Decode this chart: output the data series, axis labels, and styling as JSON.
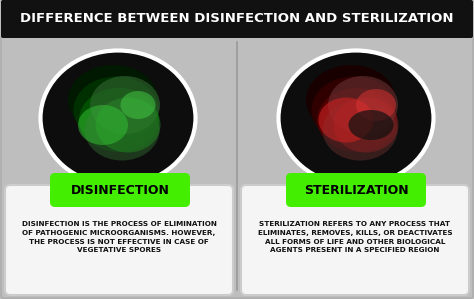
{
  "title": "DIFFERENCE BETWEEN DISINFECTION AND STERILIZATION",
  "title_fontsize": 9.5,
  "title_color": "#ffffff",
  "title_bg_color": "#111111",
  "background_color": "#bebebe",
  "left_label": "DISINFECTION",
  "right_label": "STERILIZATION",
  "label_bg_color": "#44ee00",
  "label_text_color": "#000000",
  "label_fontsize": 9,
  "left_text": "DISINFECTION IS THE PROCESS OF ELIMINATION\nOF PATHOGENIC MICROORGANISMS. HOWEVER,\nTHE PROCESS IS NOT EFFECTIVE IN CASE OF\nVEGETATIVE SPORES",
  "right_text": "STERILIZATION REFERS TO ANY PROCESS THAT\nELIMINATES, REMOVES, KILLS, OR DEACTIVATES\nALL FORMS OF LIFE AND OTHER BIOLOGICAL\nAGENTS PRESENT IN A SPECIFIED REGION",
  "text_fontsize": 5.2,
  "text_color": "#111111",
  "card_bg_color": "#f5f5f5",
  "divider_color": "#999999",
  "oval_left_bg": "#1a1a1a",
  "oval_right_bg": "#1a1a1a",
  "oval_left_fill1": "#002200",
  "oval_left_fill2": "#003300",
  "oval_left_fill3": "#115511",
  "oval_right_fill1": "#220000",
  "oval_right_fill2": "#330000",
  "oval_right_fill3": "#551111"
}
